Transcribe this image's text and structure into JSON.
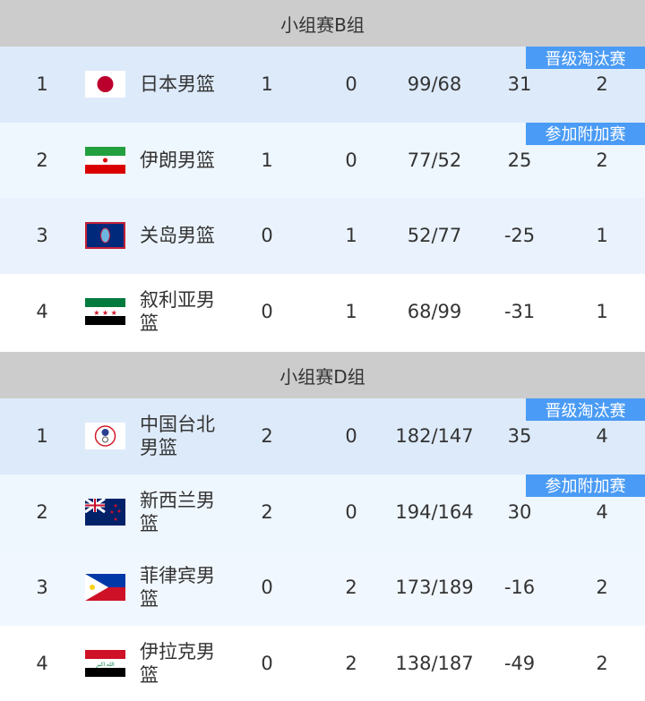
{
  "groups": [
    {
      "title": "小组赛B组",
      "rows": [
        {
          "rank": "1",
          "flag": "japan-flag",
          "team": "日本男篮",
          "w": "1",
          "l": "0",
          "score": "99/68",
          "diff": "31",
          "pts": "2",
          "badge": "晋级淘汰赛",
          "bg": "#ddeafa"
        },
        {
          "rank": "2",
          "flag": "iran-flag",
          "team": "伊朗男篮",
          "w": "1",
          "l": "0",
          "score": "77/52",
          "diff": "25",
          "pts": "2",
          "badge": "参加附加赛",
          "bg": "#eef6fe"
        },
        {
          "rank": "3",
          "flag": "guam-flag",
          "team": "关岛男篮",
          "w": "0",
          "l": "1",
          "score": "52/77",
          "diff": "-25",
          "pts": "1",
          "bg": "#eaf3fd"
        },
        {
          "rank": "4",
          "flag": "syria-flag",
          "team": "叙利亚男篮",
          "w": "0",
          "l": "1",
          "score": "68/99",
          "diff": "-31",
          "pts": "1",
          "bg": "#ffffff"
        }
      ]
    },
    {
      "title": "小组赛D组",
      "rows": [
        {
          "rank": "1",
          "flag": "chinese-taipei-flag",
          "team": "中国台北男篮",
          "w": "2",
          "l": "0",
          "score": "182/147",
          "diff": "35",
          "pts": "4",
          "badge": "晋级淘汰赛",
          "bg": "#ddeafa"
        },
        {
          "rank": "2",
          "flag": "new-zealand-flag",
          "team": "新西兰男篮",
          "w": "2",
          "l": "0",
          "score": "194/164",
          "diff": "30",
          "pts": "4",
          "badge": "参加附加赛",
          "bg": "#eef6fe"
        },
        {
          "rank": "3",
          "flag": "philippines-flag",
          "team": "菲律宾男篮",
          "w": "0",
          "l": "2",
          "score": "173/189",
          "diff": "-16",
          "pts": "2",
          "bg": "#f1f7fe"
        },
        {
          "rank": "4",
          "flag": "iraq-flag",
          "team": "伊拉克男篮",
          "w": "0",
          "l": "2",
          "score": "138/187",
          "diff": "-49",
          "pts": "2",
          "bg": "#ffffff"
        }
      ]
    }
  ],
  "colors": {
    "header": "#cccccc",
    "badge": "#4a9bf5"
  }
}
